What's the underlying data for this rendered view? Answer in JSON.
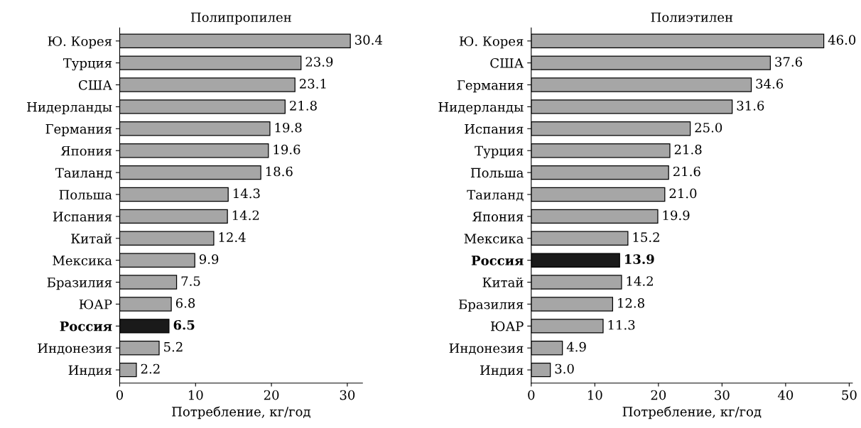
{
  "chart_data": [
    {
      "type": "bar",
      "orientation": "horizontal",
      "title": "Полипропилен",
      "xlabel": "Потребление, кг/год",
      "categories": [
        "Ю. Корея",
        "Турция",
        "США",
        "Нидерланды",
        "Германия",
        "Япония",
        "Таиланд",
        "Польша",
        "Испания",
        "Китай",
        "Мексика",
        "Бразилия",
        "ЮАР",
        "Россия",
        "Индонезия",
        "Индия"
      ],
      "values": [
        30.4,
        23.9,
        23.1,
        21.8,
        19.8,
        19.6,
        18.6,
        14.3,
        14.2,
        12.4,
        9.9,
        7.5,
        6.8,
        6.5,
        5.2,
        2.2
      ],
      "colors": [
        "#a6a6a6",
        "#a6a6a6",
        "#a6a6a6",
        "#a6a6a6",
        "#a6a6a6",
        "#a6a6a6",
        "#a6a6a6",
        "#a6a6a6",
        "#a6a6a6",
        "#a6a6a6",
        "#a6a6a6",
        "#a6a6a6",
        "#a6a6a6",
        "#1a1a1a",
        "#a6a6a6",
        "#a6a6a6"
      ],
      "value_labels": [
        "30.4",
        "23.9",
        "23.1",
        "21.8",
        "19.8",
        "19.6",
        "18.6",
        "14.3",
        "14.2",
        "12.4",
        "9.9",
        "7.5",
        "6.8",
        "6.5",
        "5.2",
        "2.2"
      ],
      "xlim": [
        0,
        32
      ],
      "xticks": [
        0,
        10,
        20,
        30
      ],
      "grid": false,
      "legend": false
    },
    {
      "type": "bar",
      "orientation": "horizontal",
      "title": "Полиэтилен",
      "xlabel": "Потребление, кг/год",
      "categories": [
        "Ю. Корея",
        "США",
        "Германия",
        "Нидерланды",
        "Испания",
        "Турция",
        "Польша",
        "Таиланд",
        "Япония",
        "Мексика",
        "Россия",
        "Китай",
        "Бразилия",
        "ЮАР",
        "Индонезия",
        "Индия"
      ],
      "values": [
        46.0,
        37.6,
        34.6,
        31.6,
        25.0,
        21.8,
        21.6,
        21.0,
        19.9,
        15.2,
        13.9,
        14.2,
        12.8,
        11.3,
        4.9,
        3.0
      ],
      "colors": [
        "#a6a6a6",
        "#a6a6a6",
        "#a6a6a6",
        "#a6a6a6",
        "#a6a6a6",
        "#a6a6a6",
        "#a6a6a6",
        "#a6a6a6",
        "#a6a6a6",
        "#a6a6a6",
        "#1a1a1a",
        "#a6a6a6",
        "#a6a6a6",
        "#a6a6a6",
        "#a6a6a6",
        "#a6a6a6"
      ],
      "value_labels": [
        "46.0",
        "37.6",
        "34.6",
        "31.6",
        "25.0",
        "21.8",
        "21.6",
        "21.0",
        "19.9",
        "15.2",
        "13.9",
        "14.2",
        "12.8",
        "11.3",
        "4.9",
        "3.0"
      ],
      "xlim": [
        0,
        50.5
      ],
      "xticks": [
        0,
        10,
        20,
        30,
        40,
        50
      ],
      "grid": false,
      "legend": false
    }
  ]
}
